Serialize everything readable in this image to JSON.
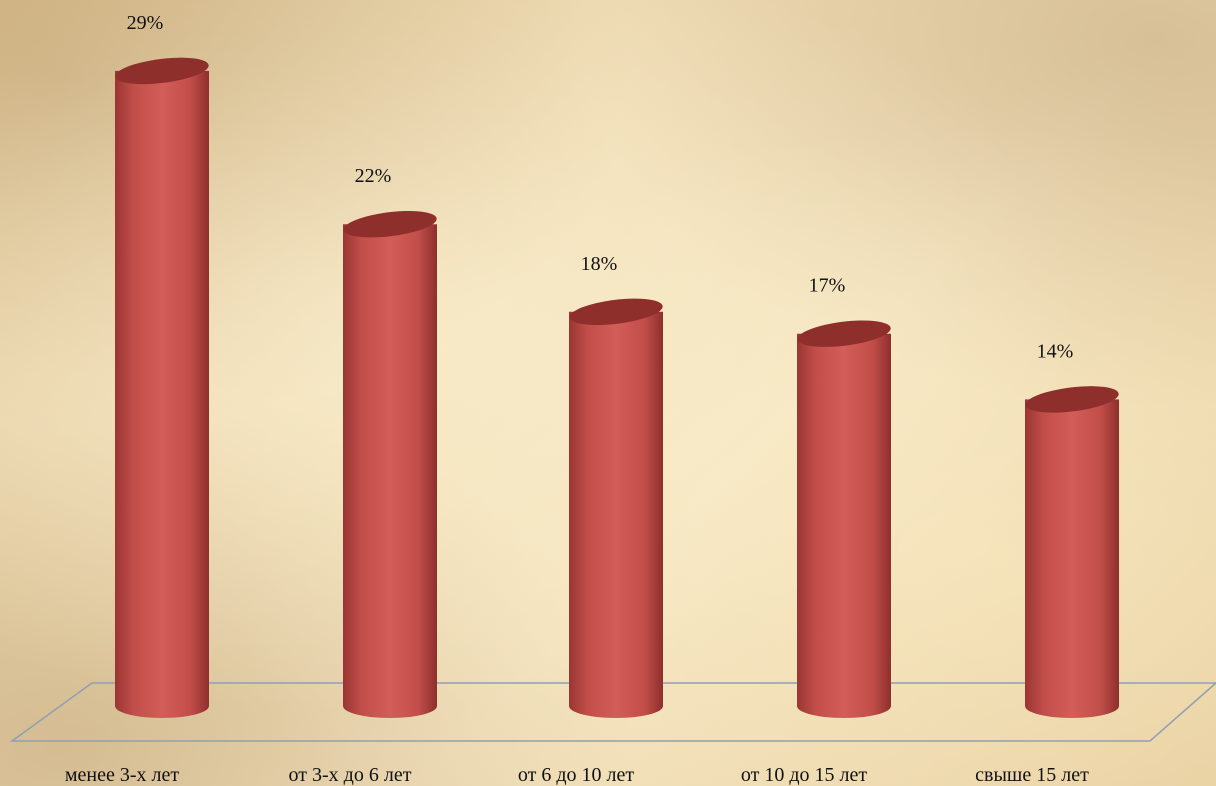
{
  "chart_data": {
    "type": "bar",
    "style": "3d-cylinder",
    "categories": [
      "менее 3-х лет",
      "от 3-х до 6 лет",
      "от 6 до 10 лет",
      "от 10 до 15 лет",
      "свыше 15 лет"
    ],
    "values": [
      29,
      22,
      18,
      17,
      14
    ],
    "data_labels": [
      "29%",
      "22%",
      "18%",
      "17%",
      "14%"
    ],
    "ylim": [
      0,
      30
    ],
    "grid": false,
    "legend": "none",
    "colors": {
      "bar": "#c0504d",
      "bar_dark": "#8e2f2c",
      "bar_light": "#d86a66",
      "floor_line": "#8fa0b4"
    }
  }
}
